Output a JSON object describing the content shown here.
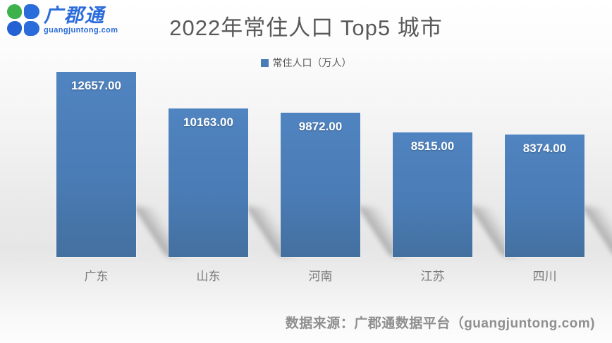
{
  "logo": {
    "brand": "广郡通",
    "domain": "guangjuntong.com"
  },
  "title": "2022年常住人口 Top5 城市",
  "legend": {
    "label": "常住人口（万人）"
  },
  "source": "数据来源：广郡通数据平台（guangjuntong.com)",
  "colors": {
    "bar": "#4a7cb6",
    "bar_top": "#5084c0",
    "bar_bottom": "#44709f",
    "title_text": "#595959",
    "category_text": "#7b7b7b",
    "source_text": "#8f8f8f",
    "logo_blue": "#2b6cdb",
    "logo_blue_dark": "#2462d3",
    "logo_green": "#3db14b"
  },
  "chart_data": {
    "type": "bar",
    "title": "2022年常住人口 Top5 城市",
    "categories": [
      "广东",
      "山东",
      "河南",
      "江苏",
      "四川"
    ],
    "values": [
      12657,
      10163,
      9872,
      8515,
      8374
    ],
    "value_labels": [
      "12657.00",
      "10163.00",
      "9872.00",
      "8515.00",
      "8374.00"
    ],
    "series_name": "常住人口（万人）",
    "unit": "万人",
    "ylim": [
      0,
      12657
    ],
    "grid": false,
    "legend_position": "top-center",
    "data_labels": "inside-end",
    "bar_color": "#4a7cb6"
  }
}
